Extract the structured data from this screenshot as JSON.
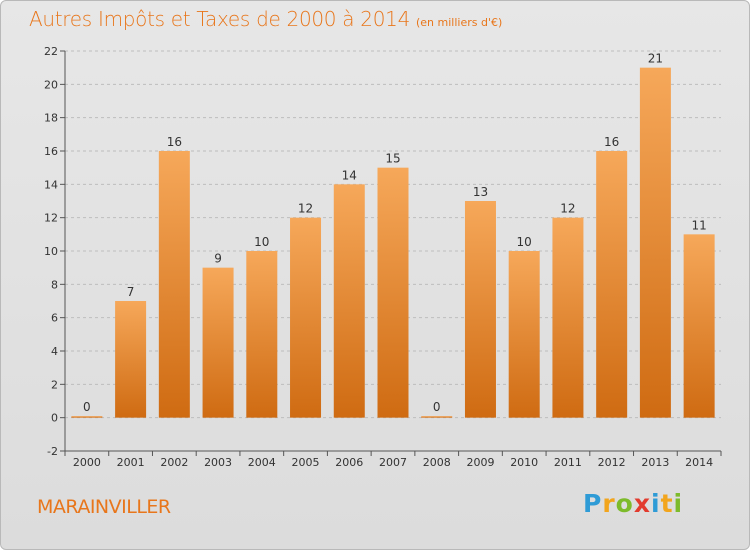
{
  "colors": {
    "accent": "#e8761b",
    "bar_light": "#f6a85a",
    "bar_dark": "#cf6b12",
    "grid": "#bdbdbd",
    "axis": "#555555",
    "text": "#333333"
  },
  "place": "MARAINVILLER",
  "logo": {
    "text": "Proxiti",
    "letters": [
      {
        "ch": "P",
        "color": "#2e9bd6"
      },
      {
        "ch": "r",
        "color": "#f2a51d"
      },
      {
        "ch": "o",
        "color": "#7dbb2b"
      },
      {
        "ch": "x",
        "color": "#e23b2e"
      },
      {
        "ch": "i",
        "color": "#2e9bd6"
      },
      {
        "ch": "t",
        "color": "#f2a51d"
      },
      {
        "ch": "i",
        "color": "#7dbb2b"
      }
    ]
  },
  "chart_data": {
    "type": "bar",
    "title": "Autres Impôts et Taxes de 2000 à 2014",
    "unit_label": "(en milliers d'€)",
    "categories": [
      "2000",
      "2001",
      "2002",
      "2003",
      "2004",
      "2005",
      "2006",
      "2007",
      "2008",
      "2009",
      "2010",
      "2011",
      "2012",
      "2013",
      "2014"
    ],
    "values": [
      0,
      7,
      16,
      9,
      10,
      12,
      14,
      15,
      0,
      13,
      10,
      12,
      16,
      21,
      11
    ],
    "data_labels": [
      "0",
      "7",
      "16",
      "9",
      "10",
      "12",
      "14",
      "15",
      "0",
      "13",
      "10",
      "12",
      "16",
      "21",
      "11"
    ],
    "yticks": [
      -2,
      0,
      2,
      4,
      6,
      8,
      10,
      12,
      14,
      16,
      18,
      20,
      22
    ],
    "ylim": [
      -2,
      22
    ],
    "grid": true,
    "legend": "none"
  }
}
